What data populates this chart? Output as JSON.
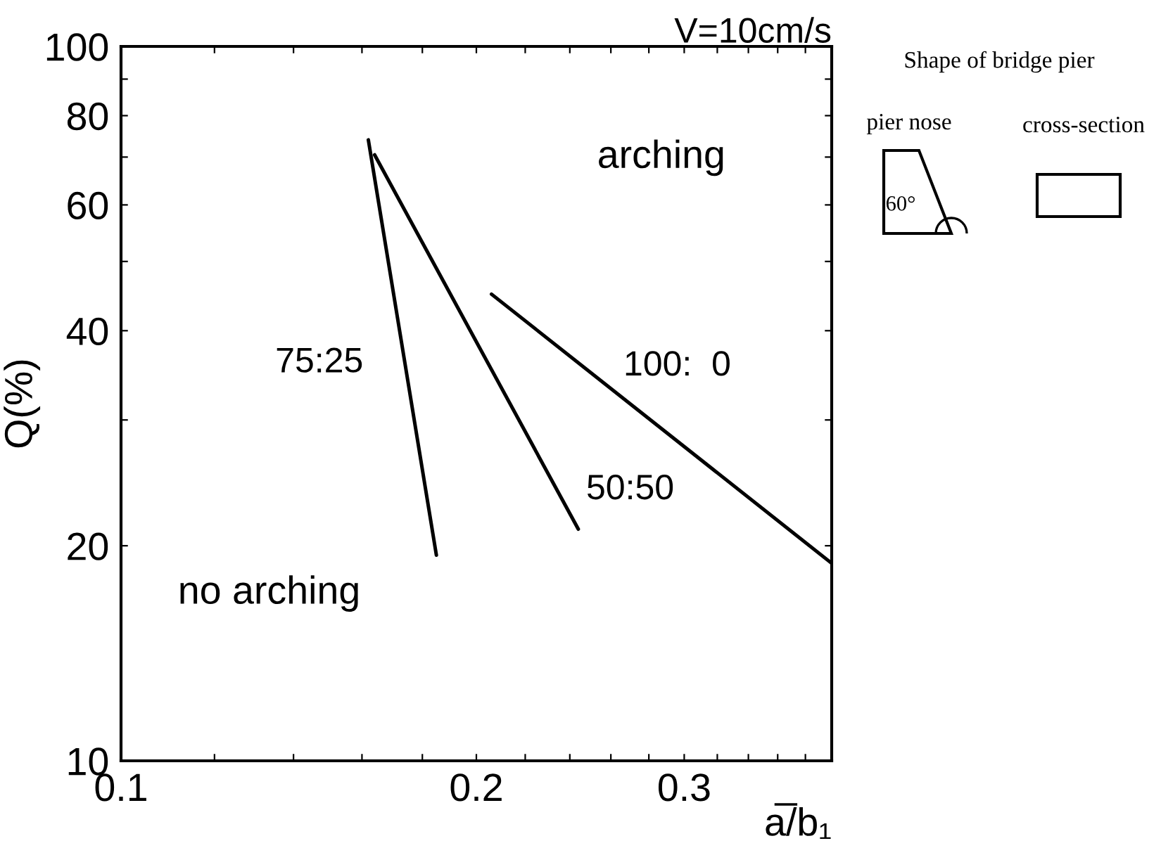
{
  "chart_data": {
    "type": "line",
    "title": "V=10cm/s",
    "xlabel": "a̅/b₁",
    "ylabel": "Q(%)",
    "log": "xy",
    "xlim": [
      0.1,
      0.4
    ],
    "ylim": [
      10,
      100
    ],
    "xticks": [
      0.1,
      {
        "value": 0.12,
        "label": null
      },
      {
        "value": 0.14,
        "label": null
      },
      {
        "value": 0.16,
        "label": null
      },
      {
        "value": 0.18,
        "label": null
      },
      0.2,
      {
        "value": 0.22,
        "label": null
      },
      {
        "value": 0.24,
        "label": null
      },
      {
        "value": 0.26,
        "label": null
      },
      {
        "value": 0.28,
        "label": null
      },
      0.3,
      {
        "value": 0.32,
        "label": null
      },
      {
        "value": 0.34,
        "label": null
      },
      {
        "value": 0.36,
        "label": null
      },
      {
        "value": 0.38,
        "label": null
      }
    ],
    "yticks": [
      10,
      20,
      {
        "value": 30,
        "label": null
      },
      40,
      {
        "value": 50,
        "label": null
      },
      60,
      {
        "value": 70,
        "label": null
      },
      80,
      {
        "value": 90,
        "label": null
      },
      100
    ],
    "grid": false,
    "legend": false,
    "marker": "none",
    "line_style": "solid",
    "series": [
      {
        "name": "75:25",
        "color": "#000000",
        "x": [
          0.162,
          0.185
        ],
        "values": [
          74,
          19.4
        ]
      },
      {
        "name": "50:50",
        "color": "#000000",
        "x": [
          0.164,
          0.244
        ],
        "values": [
          70.5,
          21.1
        ]
      },
      {
        "name": "100:  0",
        "color": "#000000",
        "x": [
          0.206,
          0.4
        ],
        "values": [
          45,
          18.9
        ]
      }
    ],
    "annotations": [
      "arching",
      "no arching",
      "Shape of bridge pier",
      "pier nose",
      "cross-section",
      "60°"
    ]
  }
}
